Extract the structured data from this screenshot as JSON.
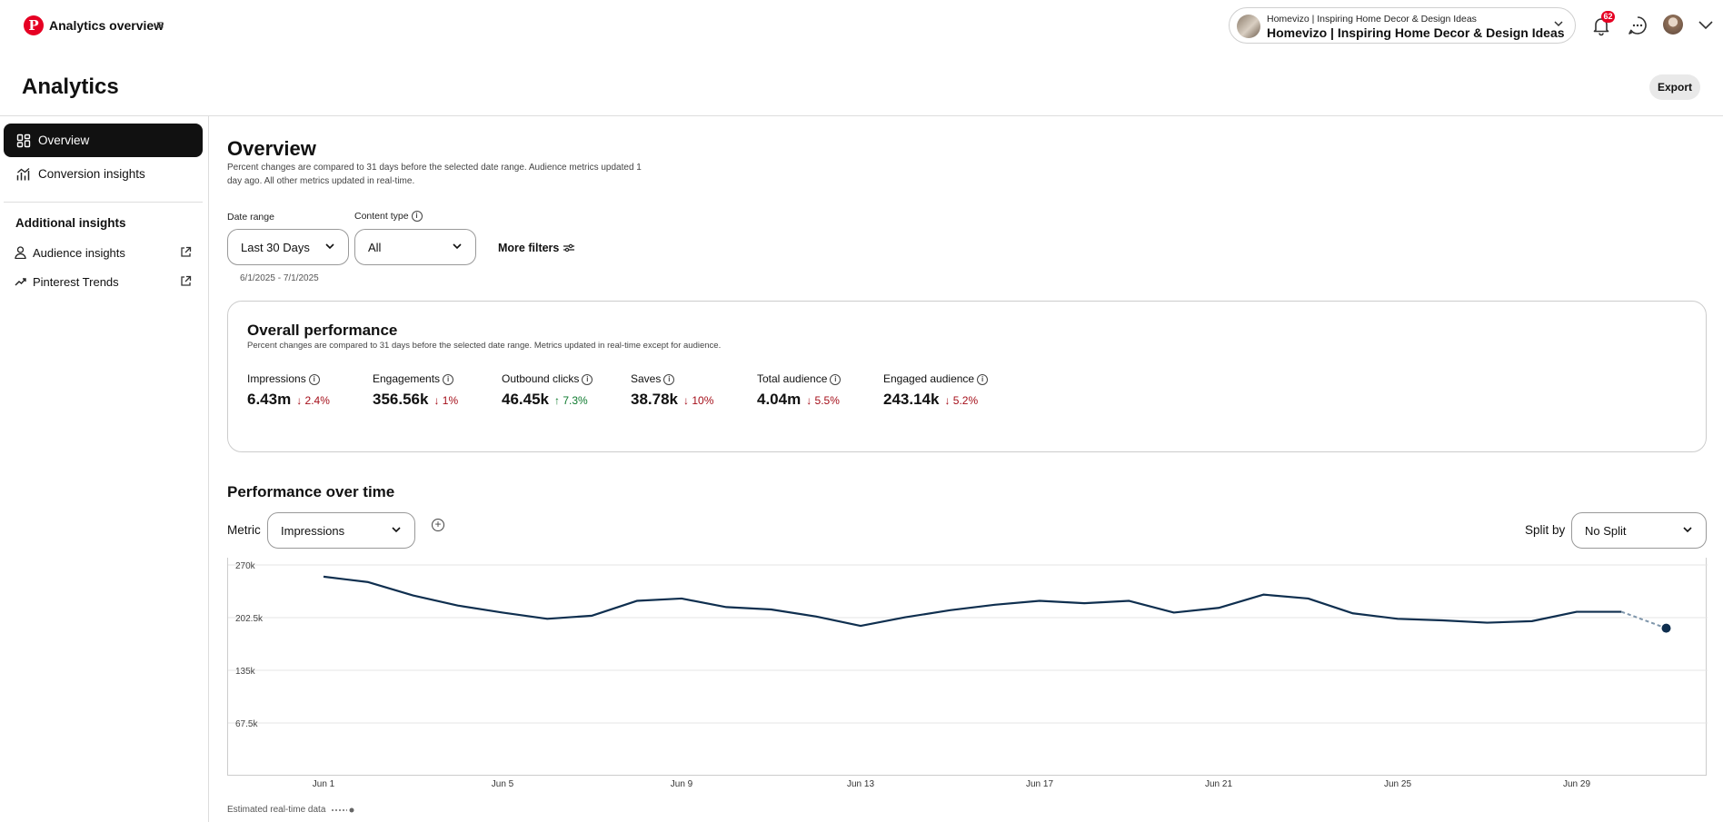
{
  "header": {
    "app_title": "Analytics overview",
    "account_small": "Homevizo | Inspiring Home Decor & Design Ideas",
    "account_large": "Homevizo | Inspiring Home Decor & Design Ideas",
    "notification_count": "62",
    "page_title": "Analytics",
    "export_label": "Export"
  },
  "sidebar": {
    "items": [
      {
        "label": "Overview",
        "icon": "grid-icon"
      },
      {
        "label": "Conversion insights",
        "icon": "conversion-icon"
      }
    ],
    "section_heading": "Additional insights",
    "links": [
      {
        "label": "Audience insights",
        "icon": "person-icon"
      },
      {
        "label": "Pinterest Trends",
        "icon": "trend-icon"
      }
    ]
  },
  "overview": {
    "title": "Overview",
    "description": "Percent changes are compared to 31 days before the selected date range. Audience metrics updated 1 day ago. All other metrics updated in real-time."
  },
  "filters": {
    "date_range_label": "Date range",
    "date_range_value": "Last 30 Days",
    "content_type_label": "Content type",
    "content_type_value": "All",
    "more_filters_label": "More filters",
    "date_sub": "6/1/2025 - 7/1/2025"
  },
  "performance": {
    "title": "Overall performance",
    "description": "Percent changes are compared to 31 days before the selected date range. Metrics updated in real-time except for audience.",
    "metrics": [
      {
        "label": "Impressions",
        "value": "6.43m",
        "change": "2.4%",
        "direction": "down"
      },
      {
        "label": "Engagements",
        "value": "356.56k",
        "change": "1%",
        "direction": "down"
      },
      {
        "label": "Outbound clicks",
        "value": "46.45k",
        "change": "7.3%",
        "direction": "up"
      },
      {
        "label": "Saves",
        "value": "38.78k",
        "change": "10%",
        "direction": "down"
      },
      {
        "label": "Total audience",
        "value": "4.04m",
        "change": "5.5%",
        "direction": "down"
      },
      {
        "label": "Engaged audience",
        "value": "243.14k",
        "change": "5.2%",
        "direction": "down"
      }
    ]
  },
  "over_time": {
    "title": "Performance over time",
    "metric_label": "Metric",
    "metric_value": "Impressions",
    "split_label": "Split by",
    "split_value": "No Split",
    "legend_note": "Estimated real-time data"
  },
  "colors": {
    "accent": "#e60023",
    "line": "#0f2f4f",
    "down": "#a50f1a",
    "up": "#0e7a2e"
  },
  "chart_data": {
    "type": "line",
    "ylim": [
      0,
      270000
    ],
    "y_ticks": [
      "270k",
      "202.5k",
      "135k",
      "67.5k"
    ],
    "y_tick_values": [
      270000,
      202500,
      135000,
      67500
    ],
    "x_labels": [
      "Jun 1",
      "Jun 5",
      "Jun 9",
      "Jun 13",
      "Jun 17",
      "Jun 21",
      "Jun 25",
      "Jun 29"
    ],
    "x_label_days": [
      1,
      5,
      9,
      13,
      17,
      21,
      25,
      29
    ],
    "x_days": [
      1,
      2,
      3,
      4,
      5,
      6,
      7,
      8,
      9,
      10,
      11,
      12,
      13,
      14,
      15,
      16,
      17,
      18,
      19,
      20,
      21,
      22,
      23,
      24,
      25,
      26,
      27,
      28,
      29,
      30
    ],
    "values": [
      255000,
      248000,
      231000,
      218000,
      209000,
      201000,
      205000,
      224000,
      227000,
      216000,
      213000,
      204000,
      192000,
      203000,
      212000,
      219000,
      224000,
      221000,
      224000,
      209000,
      215000,
      232000,
      227000,
      208000,
      201000,
      199000,
      196000,
      198000,
      210000,
      210000
    ],
    "estimated_points": [
      {
        "x": 31,
        "y": 189000
      }
    ]
  }
}
